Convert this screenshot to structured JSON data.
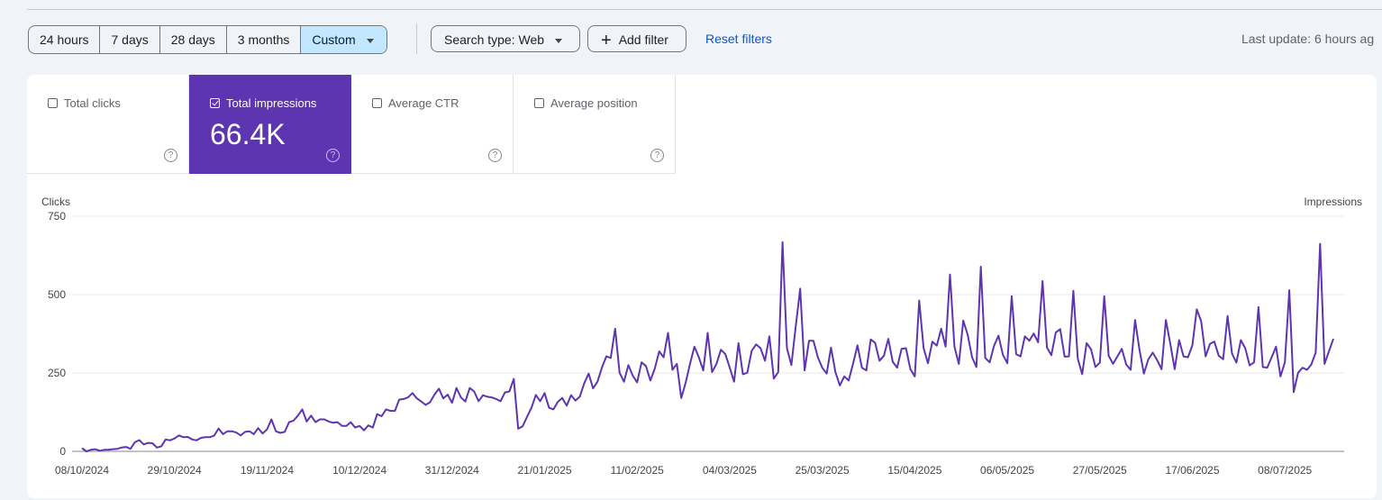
{
  "filters": {
    "ranges": [
      "24 hours",
      "7 days",
      "28 days",
      "3 months",
      "Custom"
    ],
    "active_range": "Custom",
    "search_type": "Search type: Web",
    "add_filter": "Add filter",
    "reset": "Reset filters",
    "last_update": "Last update: 6 hours ag"
  },
  "metrics": [
    {
      "label": "Total clicks",
      "checked": false,
      "value": ""
    },
    {
      "label": "Total impressions",
      "checked": true,
      "value": "66.4K"
    },
    {
      "label": "Average CTR",
      "checked": false,
      "value": ""
    },
    {
      "label": "Average position",
      "checked": false,
      "value": ""
    }
  ],
  "colors": {
    "impressions": "#5e35b1",
    "active_range": "#c2e7ff",
    "link": "#0b57d0"
  },
  "chart_data": {
    "type": "line",
    "left_axis_label": "Clicks",
    "right_axis_label": "Impressions",
    "ylim": [
      0,
      750
    ],
    "yticks": [
      "0",
      "250",
      "500",
      "750"
    ],
    "grid": true,
    "x_start": "2024-10-08",
    "x_frequency": "daily",
    "xticks": [
      "08/10/2024",
      "29/10/2024",
      "19/11/2024",
      "10/12/2024",
      "31/12/2024",
      "21/01/2025",
      "11/02/2025",
      "04/03/2025",
      "25/03/2025",
      "15/04/2025",
      "06/05/2025",
      "27/05/2025",
      "17/06/2025",
      "08/07/2025"
    ],
    "series": [
      {
        "name": "Impressions",
        "values": [
          10,
          0,
          5,
          7,
          2,
          5,
          5,
          7,
          8,
          12,
          14,
          8,
          29,
          36,
          22,
          27,
          26,
          12,
          16,
          38,
          35,
          41,
          51,
          45,
          46,
          38,
          35,
          43,
          45,
          45,
          50,
          73,
          55,
          64,
          64,
          60,
          51,
          62,
          64,
          55,
          74,
          57,
          70,
          102,
          64,
          59,
          62,
          93,
          98,
          114,
          134,
          95,
          114,
          93,
          102,
          102,
          95,
          91,
          93,
          81,
          81,
          93,
          76,
          81,
          67,
          83,
          76,
          119,
          112,
          134,
          129,
          129,
          165,
          167,
          172,
          186,
          169,
          159,
          148,
          157,
          181,
          200,
          169,
          181,
          155,
          202,
          172,
          159,
          202,
          191,
          160,
          179,
          174,
          172,
          167,
          160,
          188,
          191,
          231,
          72,
          80,
          110,
          139,
          180,
          160,
          186,
          139,
          134,
          158,
          170,
          146,
          179,
          162,
          175,
          218,
          248,
          201,
          222,
          267,
          303,
          298,
          391,
          251,
          222,
          275,
          241,
          220,
          284,
          272,
          226,
          264,
          319,
          300,
          378,
          260,
          279,
          170,
          218,
          279,
          334,
          300,
          258,
          378,
          253,
          279,
          324,
          310,
          267,
          222,
          345,
          246,
          251,
          321,
          341,
          329,
          289,
          367,
          232,
          253,
          667,
          329,
          275,
          400,
          519,
          258,
          353,
          353,
          300,
          267,
          248,
          331,
          253,
          210,
          239,
          226,
          280,
          338,
          267,
          258,
          357,
          346,
          289,
          305,
          359,
          286,
          267,
          327,
          329,
          262,
          239,
          481,
          329,
          281,
          350,
          337,
          391,
          334,
          564,
          334,
          279,
          417,
          372,
          300,
          269,
          589,
          298,
          284,
          337,
          369,
          308,
          281,
          495,
          310,
          303,
          367,
          353,
          376,
          348,
          543,
          331,
          307,
          379,
          390,
          302,
          303,
          512,
          296,
          246,
          345,
          326,
          269,
          283,
          495,
          305,
          279,
          303,
          327,
          277,
          260,
          419,
          324,
          248,
          293,
          315,
          291,
          262,
          419,
          343,
          262,
          355,
          303,
          300,
          338,
          453,
          415,
          303,
          343,
          350,
          305,
          294,
          432,
          312,
          283,
          355,
          329,
          274,
          284,
          460,
          269,
          267,
          300,
          334,
          239,
          284,
          514,
          189,
          251,
          267,
          260,
          277,
          315,
          662,
          279,
          319,
          359
        ]
      }
    ]
  }
}
